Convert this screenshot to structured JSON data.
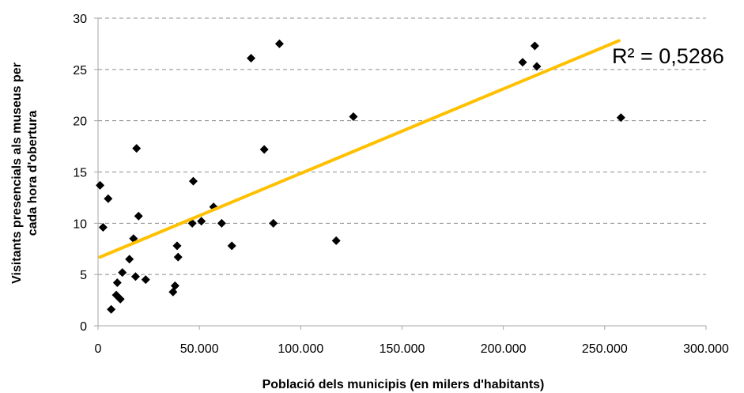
{
  "chart_data": {
    "type": "scatter",
    "xlabel": "Població dels municipis (en milers d'habitants)",
    "ylabel_lines": [
      "Visitants presencials als museus per",
      "cada hora d'obertura"
    ],
    "xlim": [
      0,
      300000
    ],
    "ylim": [
      0,
      30
    ],
    "x_ticks": [
      0,
      50000,
      100000,
      150000,
      200000,
      250000,
      300000
    ],
    "x_tick_labels": [
      "0",
      "50.000",
      "100.000",
      "150.000",
      "200.000",
      "250.000",
      "300.000"
    ],
    "y_ticks": [
      0,
      5,
      10,
      15,
      20,
      25,
      30
    ],
    "y_tick_labels": [
      "0",
      "5",
      "10",
      "15",
      "20",
      "25",
      "30"
    ],
    "grid": "horizontal-dashed",
    "point_color": "#000000",
    "points": [
      [
        1000,
        13.7
      ],
      [
        2500,
        9.6
      ],
      [
        5000,
        12.4
      ],
      [
        6500,
        1.6
      ],
      [
        9000,
        3.0
      ],
      [
        9500,
        4.2
      ],
      [
        11000,
        2.6
      ],
      [
        12000,
        5.2
      ],
      [
        15500,
        6.5
      ],
      [
        17500,
        8.5
      ],
      [
        18500,
        4.8
      ],
      [
        19000,
        17.3
      ],
      [
        20000,
        10.7
      ],
      [
        23500,
        4.5
      ],
      [
        37000,
        3.3
      ],
      [
        38000,
        3.9
      ],
      [
        39000,
        7.8
      ],
      [
        39500,
        6.7
      ],
      [
        46500,
        10.0
      ],
      [
        47000,
        14.1
      ],
      [
        51000,
        10.2
      ],
      [
        57000,
        11.6
      ],
      [
        61000,
        10.0
      ],
      [
        66000,
        7.8
      ],
      [
        75500,
        26.1
      ],
      [
        82000,
        17.2
      ],
      [
        86500,
        10.0
      ],
      [
        89500,
        27.5
      ],
      [
        117500,
        8.3
      ],
      [
        126000,
        20.4
      ],
      [
        209500,
        25.7
      ],
      [
        215500,
        27.3
      ],
      [
        216500,
        25.3
      ],
      [
        258000,
        20.3
      ]
    ],
    "trendline": {
      "color": "#FFC000",
      "x_start": 1000,
      "y_start": 6.7,
      "x_end": 257000,
      "y_end": 27.8,
      "r2_label": "R² = 0,5286"
    }
  }
}
